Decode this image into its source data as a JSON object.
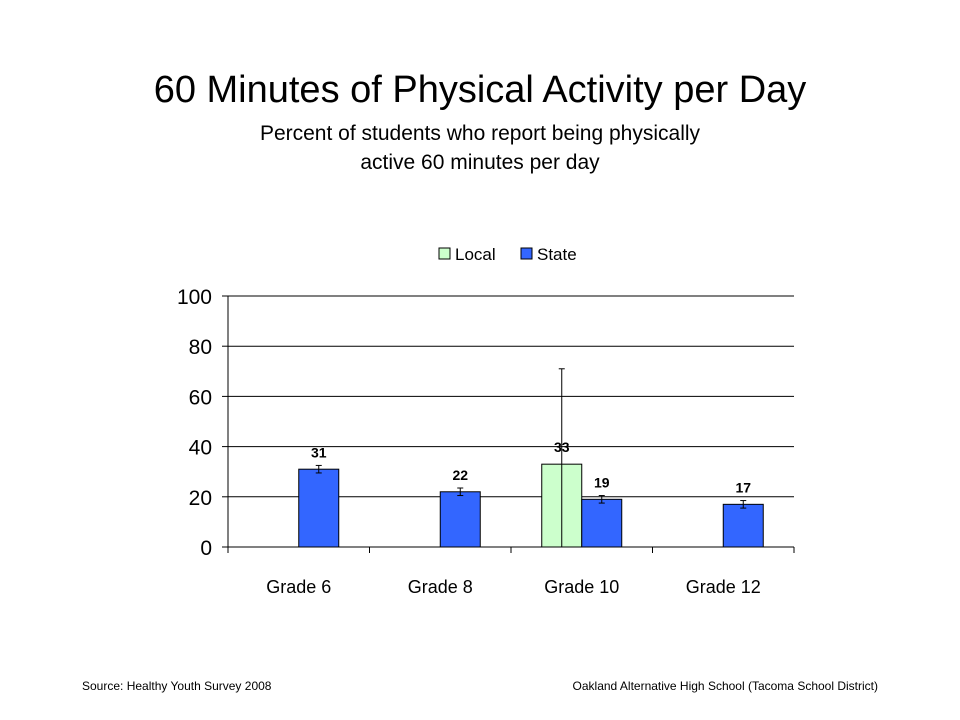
{
  "slide": {
    "title": "60 Minutes of Physical Activity per Day",
    "subtitle": "Percent of students who report being physically active 60 minutes per day"
  },
  "footer": {
    "source": "Source: Healthy Youth Survey 2008",
    "school": "Oakland Alternative High School (Tacoma School District)"
  },
  "chart_data": {
    "type": "bar",
    "title": "",
    "xlabel": "",
    "ylabel": "",
    "categories": [
      "Grade 6",
      "Grade 8",
      "Grade 10",
      "Grade 12"
    ],
    "ylim": [
      0,
      100
    ],
    "yticks": [
      0,
      20,
      40,
      60,
      80,
      100
    ],
    "grid": true,
    "legend_position": "top",
    "series": [
      {
        "name": "Local",
        "color": "#ccffcc",
        "values": [
          null,
          null,
          33,
          null
        ],
        "labels": [
          "",
          "",
          "33",
          ""
        ],
        "error_low": [
          null,
          null,
          0,
          null
        ],
        "error_high": [
          null,
          null,
          71,
          null
        ]
      },
      {
        "name": "State",
        "color": "#3366ff",
        "values": [
          31,
          22,
          19,
          17
        ],
        "labels": [
          "31",
          "22",
          "19",
          "17"
        ],
        "error_low": [
          29.5,
          20.5,
          17.5,
          15.5
        ],
        "error_high": [
          32.5,
          23.5,
          20.5,
          18.5
        ]
      }
    ]
  }
}
